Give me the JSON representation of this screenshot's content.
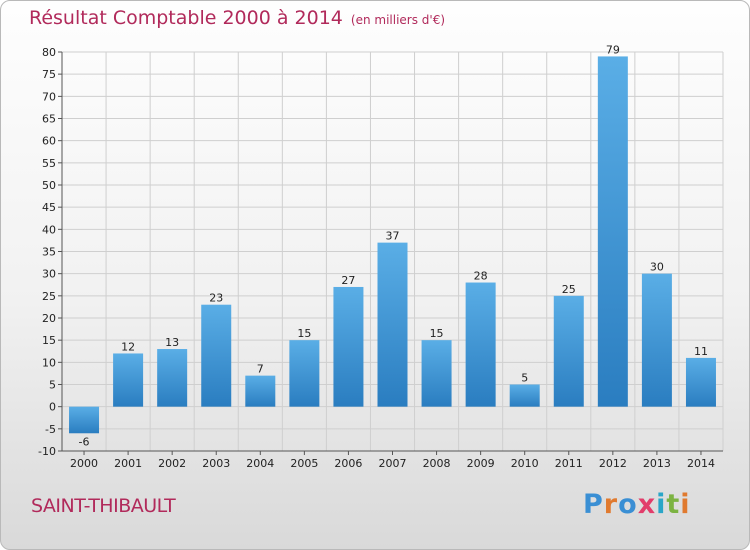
{
  "chart_data": {
    "type": "bar",
    "title": "Résultat Comptable 2000 à 2014",
    "subtitle": "(en milliers d'€)",
    "categories": [
      "2000",
      "2001",
      "2002",
      "2003",
      "2004",
      "2005",
      "2006",
      "2007",
      "2008",
      "2009",
      "2010",
      "2011",
      "2012",
      "2013",
      "2014"
    ],
    "values": [
      -6,
      12,
      13,
      23,
      7,
      15,
      27,
      37,
      15,
      28,
      5,
      25,
      79,
      30,
      11
    ],
    "ylim": [
      -10,
      80
    ],
    "yticks": [
      -10,
      -5,
      0,
      5,
      10,
      15,
      20,
      25,
      30,
      35,
      40,
      45,
      50,
      55,
      60,
      65,
      70,
      75,
      80
    ],
    "grid": true,
    "xlabel": "",
    "ylabel": ""
  },
  "place": "SAINT-THIBAULT",
  "brand": {
    "letters": [
      "P",
      "r",
      "o",
      "x",
      "i",
      "t",
      "i"
    ],
    "colors": [
      "#3a8fd4",
      "#e07a2f",
      "#3a8fd4",
      "#e23d6b",
      "#2aa6c8",
      "#7cb342",
      "#e07a2f"
    ]
  },
  "colors": {
    "title": "#b12a5b",
    "bar_light": "#5aaee6",
    "bar_dark": "#2a7dc0",
    "grid": "#cfcfcf"
  }
}
